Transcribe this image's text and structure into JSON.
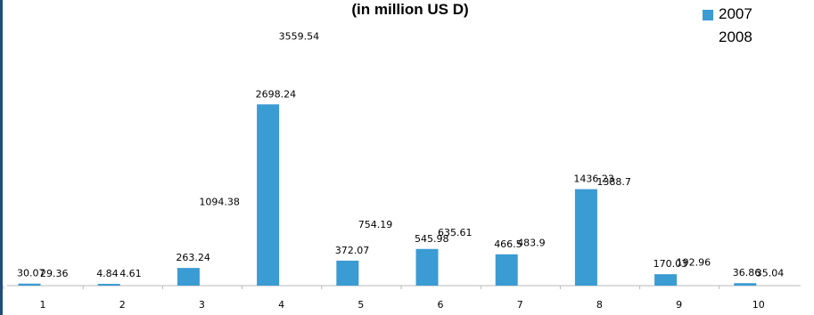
{
  "chart_data": {
    "type": "bar",
    "title": "(in million US D)",
    "categories": [
      "1",
      "2",
      "3",
      "4",
      "5",
      "6",
      "7",
      "8",
      "9",
      "10"
    ],
    "series": [
      {
        "name": "2007",
        "color": "#3b9bd3",
        "values": [
          30.07,
          4.84,
          263.24,
          2698.24,
          372.07,
          545.98,
          466.5,
          1436.23,
          170.03,
          36.86
        ],
        "labels": [
          "30.07",
          "4.84",
          "263.24",
          "2698.24",
          "372.07",
          "545.98",
          "466.5",
          "1436.23",
          "170.03",
          "36.86"
        ],
        "drawn": true
      },
      {
        "name": "2008",
        "color": "#ffffff",
        "values": [
          29.36,
          4.61,
          1094.38,
          3559.54,
          754.19,
          635.61,
          483.9,
          1388.7,
          192.96,
          35.04
        ],
        "labels": [
          "29.36",
          "4.61",
          "1094.38",
          "3559.54",
          "754.19",
          "635.61",
          "483.9",
          "1388.7",
          "192.96",
          "35.04"
        ],
        "drawn": false
      }
    ],
    "ylim": [
      0,
      4000
    ],
    "grid": false,
    "legend": "top-right"
  }
}
